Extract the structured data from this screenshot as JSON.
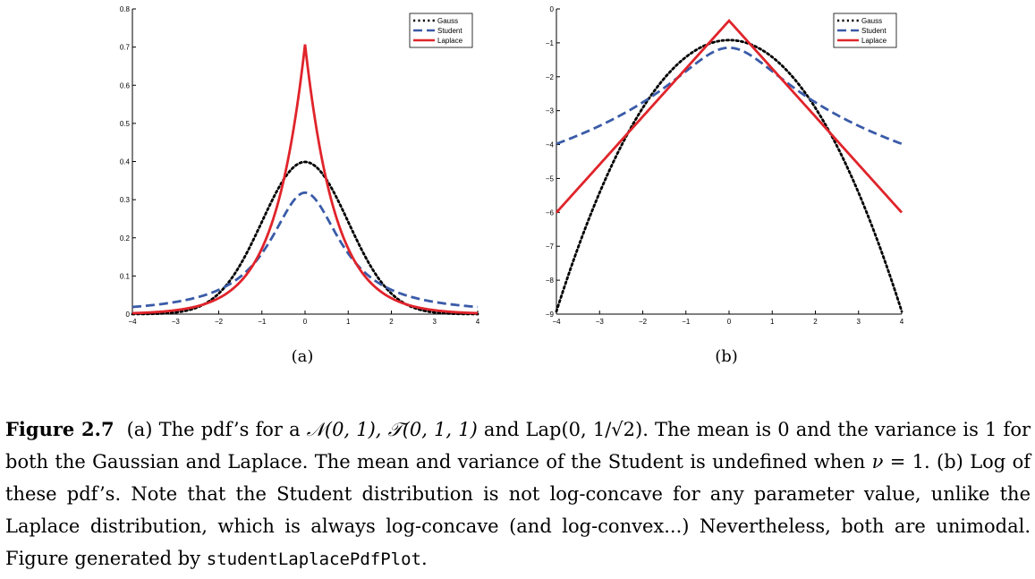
{
  "chart_data": [
    {
      "type": "line",
      "subfigure_label": "(a)",
      "x_range": [
        -4,
        4
      ],
      "ylim": [
        0,
        0.8
      ],
      "x_ticks": [
        "−4",
        "−3",
        "−2",
        "−1",
        "0",
        "1",
        "2",
        "3",
        "4"
      ],
      "y_ticks": [
        "0",
        "0.1",
        "0.2",
        "0.3",
        "0.4",
        "0.5",
        "0.6",
        "0.7",
        "0.8"
      ],
      "legend_position": "top-right",
      "series": [
        {
          "name": "Gauss",
          "style": "dotted",
          "color": "#000000",
          "function": "normal_pdf"
        },
        {
          "name": "Student",
          "style": "dashed",
          "color": "#3a5ba8",
          "function": "student_t1_pdf"
        },
        {
          "name": "Laplace",
          "style": "solid",
          "color": "#e0242b",
          "function": "laplace_pdf"
        }
      ]
    },
    {
      "type": "line",
      "subfigure_label": "(b)",
      "x_range": [
        -4,
        4
      ],
      "ylim": [
        -9,
        0
      ],
      "x_ticks": [
        "−4",
        "−3",
        "−2",
        "−1",
        "0",
        "1",
        "2",
        "3",
        "4"
      ],
      "y_ticks": [
        "−9",
        "−8",
        "−7",
        "−6",
        "−5",
        "−4",
        "−3",
        "−2",
        "−1",
        "0"
      ],
      "legend_position": "top-right",
      "series": [
        {
          "name": "Gauss",
          "style": "dotted",
          "color": "#000000",
          "function": "log_normal_pdf"
        },
        {
          "name": "Student",
          "style": "dashed",
          "color": "#3a5ba8",
          "function": "log_student_t1_pdf"
        },
        {
          "name": "Laplace",
          "style": "solid",
          "color": "#e0242b",
          "function": "log_laplace_pdf"
        }
      ]
    }
  ],
  "caption": {
    "label": "Figure 2.7",
    "part1": "(a) The pdf’s for a ",
    "m1": "𝒩(0, 1), 𝒯(0, 1, 1)",
    "part2": " and Lap(0, 1/√2). The mean is 0 and the variance is 1 for both the Gaussian and Laplace. The mean and variance of the Student is undefined when ",
    "m2": "ν",
    "part3": " = 1. (b) Log of these pdf’s. Note that the Student distribution is not log-concave for any parameter value, unlike the Laplace distribution, which is always log-concave (and log-convex...) Nevertheless, both are unimodal. Figure generated by ",
    "code": "studentLaplacePdfPlot",
    "end": "."
  }
}
